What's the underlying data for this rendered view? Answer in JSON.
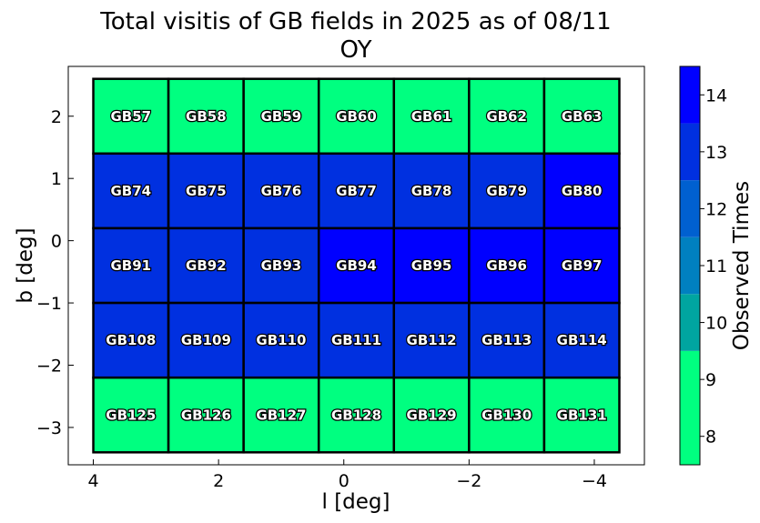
{
  "chart_data": {
    "type": "heatmap",
    "title": "Total visitis of GB fields in 2025 as of 08/11",
    "subtitle": "OY",
    "xlabel": "l [deg]",
    "ylabel": "b [deg]",
    "colorbar_label": "Observed Times",
    "x_ticks": [
      4,
      2,
      0,
      -2,
      -4
    ],
    "x_tick_labels": [
      "4",
      "2",
      "0",
      "−2",
      "−4"
    ],
    "y_ticks": [
      2,
      1,
      0,
      -1,
      -2,
      -3
    ],
    "y_tick_labels": [
      "2",
      "1",
      "0",
      "−1",
      "−2",
      "−3"
    ],
    "xlim": [
      4.4,
      -4.8
    ],
    "ylim": [
      -3.6,
      2.8
    ],
    "x_inverted": true,
    "colorbar": {
      "range": [
        7.5,
        14.5
      ],
      "ticks": [
        8,
        9,
        10,
        11,
        12,
        13,
        14
      ],
      "bins": [
        {
          "from": 7.5,
          "to": 9.5,
          "color": "#00ff80"
        },
        {
          "from": 9.5,
          "to": 10.5,
          "color": "#00a5a0"
        },
        {
          "from": 10.5,
          "to": 11.5,
          "color": "#0080c0"
        },
        {
          "from": 11.5,
          "to": 12.5,
          "color": "#0060d0"
        },
        {
          "from": 12.5,
          "to": 13.5,
          "color": "#0030e0"
        },
        {
          "from": 13.5,
          "to": 14.5,
          "color": "#0000ff"
        }
      ]
    },
    "cell_size_deg": [
      1.2,
      1.2
    ],
    "columns_l_center": [
      3.4,
      2.2,
      1.0,
      -0.2,
      -1.4,
      -2.6,
      -3.8
    ],
    "rows_b_center": [
      2.0,
      0.8,
      -0.4,
      -1.6,
      -2.8
    ],
    "fields": [
      [
        {
          "name": "GB57",
          "value": 8
        },
        {
          "name": "GB58",
          "value": 8
        },
        {
          "name": "GB59",
          "value": 8
        },
        {
          "name": "GB60",
          "value": 8
        },
        {
          "name": "GB61",
          "value": 8
        },
        {
          "name": "GB62",
          "value": 8
        },
        {
          "name": "GB63",
          "value": 8
        }
      ],
      [
        {
          "name": "GB74",
          "value": 13
        },
        {
          "name": "GB75",
          "value": 13
        },
        {
          "name": "GB76",
          "value": 13
        },
        {
          "name": "GB77",
          "value": 13
        },
        {
          "name": "GB78",
          "value": 13
        },
        {
          "name": "GB79",
          "value": 13
        },
        {
          "name": "GB80",
          "value": 14
        }
      ],
      [
        {
          "name": "GB91",
          "value": 13
        },
        {
          "name": "GB92",
          "value": 13
        },
        {
          "name": "GB93",
          "value": 13
        },
        {
          "name": "GB94",
          "value": 14
        },
        {
          "name": "GB95",
          "value": 14
        },
        {
          "name": "GB96",
          "value": 14
        },
        {
          "name": "GB97",
          "value": 14
        }
      ],
      [
        {
          "name": "GB108",
          "value": 13
        },
        {
          "name": "GB109",
          "value": 13
        },
        {
          "name": "GB110",
          "value": 13
        },
        {
          "name": "GB111",
          "value": 13
        },
        {
          "name": "GB112",
          "value": 13
        },
        {
          "name": "GB113",
          "value": 13
        },
        {
          "name": "GB114",
          "value": 13
        }
      ],
      [
        {
          "name": "GB125",
          "value": 8
        },
        {
          "name": "GB126",
          "value": 8
        },
        {
          "name": "GB127",
          "value": 8
        },
        {
          "name": "GB128",
          "value": 8
        },
        {
          "name": "GB129",
          "value": 8
        },
        {
          "name": "GB130",
          "value": 8
        },
        {
          "name": "GB131",
          "value": 8
        }
      ]
    ]
  }
}
